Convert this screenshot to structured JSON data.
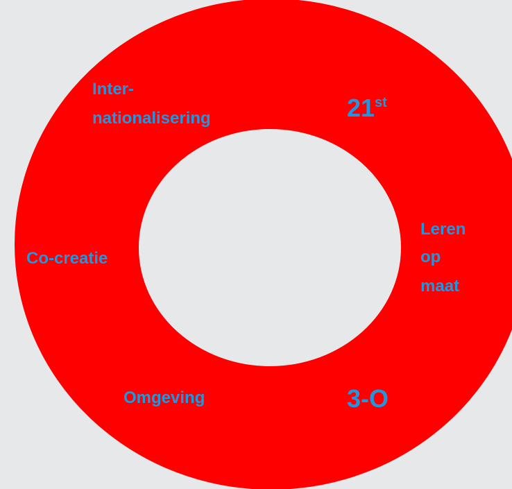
{
  "labels": {
    "internationalisering": [
      "Inter-",
      "nationalisering"
    ],
    "twenty_first": {
      "text": "21",
      "superscript": "st"
    },
    "leren_op_maat": [
      "Leren",
      "op",
      "maat"
    ],
    "co_creatie": "Co-creatie",
    "omgeving": "Omgeving",
    "three_o": "3-O"
  }
}
